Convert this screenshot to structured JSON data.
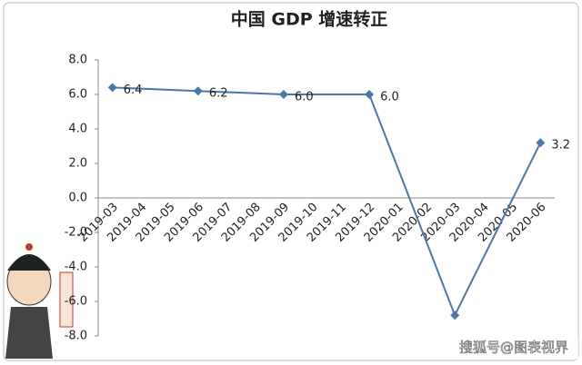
{
  "chart_data": {
    "type": "line",
    "title": "中国 GDP 增速转正",
    "categories": [
      "2019-03",
      "2019-04",
      "2019-05",
      "2019-06",
      "2019-07",
      "2019-08",
      "2019-09",
      "2019-10",
      "2019-11",
      "2019-12",
      "2020-01",
      "2020-02",
      "2020-03",
      "2020-04",
      "2020-05",
      "2020-06"
    ],
    "series": [
      {
        "color": "#4a76a8",
        "x": [
          "2019-03",
          "2019-06",
          "2019-09",
          "2019-12",
          "2020-03",
          "2020-06"
        ],
        "values": [
          6.4,
          6.2,
          6.0,
          6.0,
          -6.8,
          3.2
        ],
        "value_labels": [
          "6.4",
          "6.2",
          "6.0",
          "6.0",
          null,
          "3.2"
        ]
      }
    ],
    "ylim": [
      -8,
      8
    ],
    "yticks": [
      {
        "value": 8,
        "label": "8.0"
      },
      {
        "value": 6,
        "label": "6.0"
      },
      {
        "value": 4,
        "label": "4.0"
      },
      {
        "value": 2,
        "label": "2.0"
      },
      {
        "value": 0,
        "label": "0.0"
      },
      {
        "value": -2,
        "label": "-2.0"
      },
      {
        "value": -4,
        "label": "-4.0"
      },
      {
        "value": -6,
        "label": "-6.0"
      },
      {
        "value": -8,
        "label": "-8.0"
      }
    ],
    "grid": false,
    "watermark": "搜狐号@图表视界"
  }
}
